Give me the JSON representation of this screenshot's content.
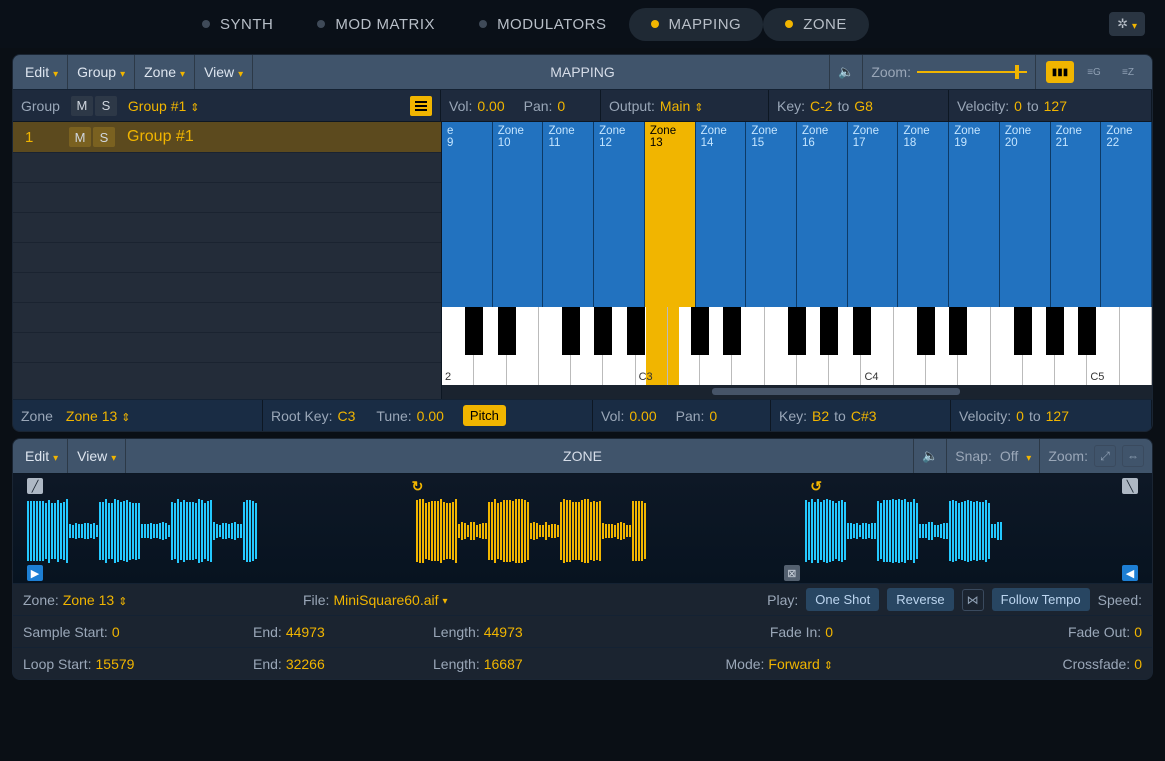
{
  "topTabs": [
    {
      "label": "SYNTH",
      "on": false
    },
    {
      "label": "MOD MATRIX",
      "on": false
    },
    {
      "label": "MODULATORS",
      "on": false
    },
    {
      "label": "MAPPING",
      "on": true
    },
    {
      "label": "ZONE",
      "on": true
    }
  ],
  "mapping": {
    "title": "MAPPING",
    "menus": [
      "Edit",
      "Group",
      "Zone",
      "View"
    ],
    "zoomLabel": "Zoom:",
    "groupBar": {
      "label": "Group",
      "name": "Group #1",
      "vol": {
        "label": "Vol:",
        "value": "0.00"
      },
      "pan": {
        "label": "Pan:",
        "value": "0"
      },
      "output": {
        "label": "Output:",
        "value": "Main"
      },
      "key": {
        "label": "Key:",
        "low": "C-2",
        "to": "to",
        "high": "G8"
      },
      "velocity": {
        "label": "Velocity:",
        "low": "0",
        "to": "to",
        "high": "127"
      }
    },
    "groupRow": {
      "index": "1",
      "name": "Group #1"
    },
    "zones": [
      {
        "label": "e 9"
      },
      {
        "label": "Zone 10"
      },
      {
        "label": "Zone 11"
      },
      {
        "label": "Zone 12"
      },
      {
        "label": "Zone 13",
        "selected": true
      },
      {
        "label": "Zone 14"
      },
      {
        "label": "Zone 15"
      },
      {
        "label": "Zone 16"
      },
      {
        "label": "Zone 17"
      },
      {
        "label": "Zone 18"
      },
      {
        "label": "Zone 19"
      },
      {
        "label": "Zone 20"
      },
      {
        "label": "Zone 21"
      },
      {
        "label": "Zone 22"
      }
    ],
    "pianoNotes": [
      "2",
      "C3",
      "C4",
      "C5"
    ],
    "zoneBar": {
      "label": "Zone",
      "name": "Zone 13",
      "rootKey": {
        "label": "Root Key:",
        "value": "C3"
      },
      "tune": {
        "label": "Tune:",
        "value": "0.00"
      },
      "pitch": "Pitch",
      "vol": {
        "label": "Vol:",
        "value": "0.00"
      },
      "pan": {
        "label": "Pan:",
        "value": "0"
      },
      "key": {
        "label": "Key:",
        "low": "B2",
        "to": "to",
        "high": "C#3"
      },
      "velocity": {
        "label": "Velocity:",
        "low": "0",
        "to": "to",
        "high": "127"
      }
    }
  },
  "zonePanel": {
    "title": "ZONE",
    "menus": [
      "Edit",
      "View"
    ],
    "snap": {
      "label": "Snap:",
      "value": "Off"
    },
    "zoomLabel": "Zoom:",
    "wave": {
      "loopStartPct": 35,
      "loopEndPct": 70,
      "colors": {
        "outer": "#24c9ff",
        "loop": "#f1b500"
      }
    },
    "meta": {
      "zone": {
        "label": "Zone:",
        "value": "Zone 13"
      },
      "file": {
        "label": "File:",
        "value": "MiniSquare60.aif"
      },
      "play": {
        "label": "Play:",
        "oneshot": "One Shot",
        "reverse": "Reverse",
        "follow": "Follow Tempo",
        "speed": "Speed:"
      }
    },
    "sample": {
      "startLabel": "Sample Start:",
      "start": "0",
      "endLabel": "End:",
      "end": "44973",
      "lengthLabel": "Length:",
      "length": "44973",
      "fadeInLabel": "Fade In:",
      "fadeIn": "0",
      "fadeOutLabel": "Fade Out:",
      "fadeOut": "0"
    },
    "loop": {
      "startLabel": "Loop Start:",
      "start": "15579",
      "endLabel": "End:",
      "end": "32266",
      "lengthLabel": "Length:",
      "length": "16687",
      "modeLabel": "Mode:",
      "mode": "Forward",
      "crossfadeLabel": "Crossfade:",
      "crossfade": "0"
    }
  }
}
